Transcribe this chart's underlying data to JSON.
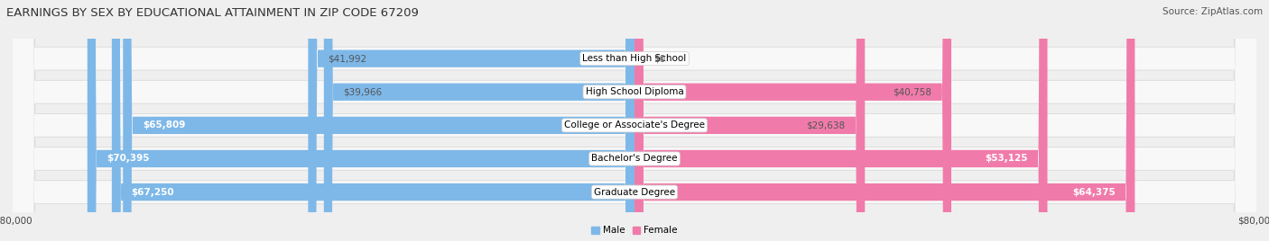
{
  "title": "EARNINGS BY SEX BY EDUCATIONAL ATTAINMENT IN ZIP CODE 67209",
  "source": "Source: ZipAtlas.com",
  "categories": [
    "Less than High School",
    "High School Diploma",
    "College or Associate's Degree",
    "Bachelor's Degree",
    "Graduate Degree"
  ],
  "male_values": [
    41992,
    39966,
    65809,
    70395,
    67250
  ],
  "female_values": [
    0,
    40758,
    29638,
    53125,
    64375
  ],
  "male_color": "#7EB8E8",
  "female_color": "#F07BAA",
  "male_label": "Male",
  "female_label": "Female",
  "axis_max": 80000,
  "bg_color": "#EFEFEF",
  "row_bg_color": "#FFFFFF",
  "title_fontsize": 9.5,
  "source_fontsize": 7.5,
  "label_fontsize": 7.5,
  "value_fontsize": 7.5,
  "tick_fontsize": 7.5
}
